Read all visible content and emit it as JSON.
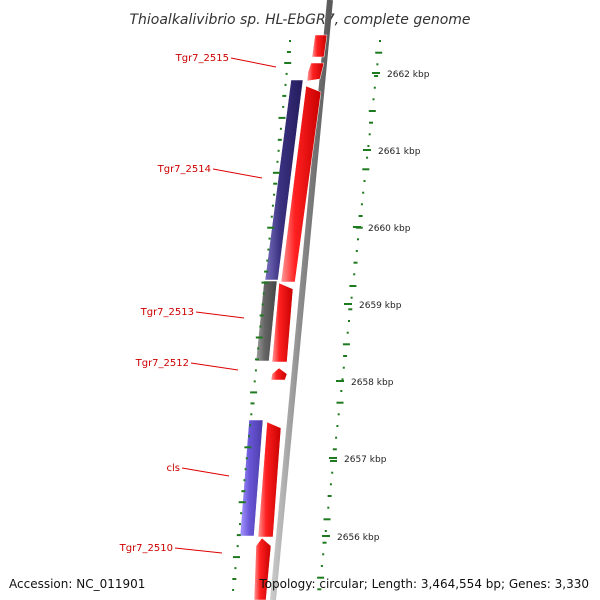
{
  "title": "Thioalkalivibrio sp. HL-EbGR7, complete genome",
  "footer": {
    "accession": "Accession: NC_011901",
    "summary": "Topology: circular; Length: 3,464,554 bp; Genes: 3,330"
  },
  "genes": [
    {
      "label": "Tgr7_2515",
      "color": "#dd0000"
    },
    {
      "label": "Tgr7_2514",
      "color": "#dd0000"
    },
    {
      "label": "Tgr7_2513",
      "color": "#dd0000"
    },
    {
      "label": "Tgr7_2512",
      "color": "#dd0000"
    },
    {
      "label": "cls",
      "color": "#dd0000"
    },
    {
      "label": "Tgr7_2510",
      "color": "#dd0000"
    }
  ],
  "ticks": [
    {
      "label": "2662 kbp"
    },
    {
      "label": "2661 kbp"
    },
    {
      "label": "2660 kbp"
    },
    {
      "label": "2659 kbp"
    },
    {
      "label": "2658 kbp"
    },
    {
      "label": "2657 kbp"
    },
    {
      "label": "2656 kbp"
    }
  ],
  "colors": {
    "cds_forward": "#ee1111",
    "cog_dark_blue": "#3a3180",
    "cog_gray": "#666666",
    "cog_light_blue": "#6a57d8",
    "backbone": "#888888",
    "gc_dots": "#1e7a1e"
  }
}
